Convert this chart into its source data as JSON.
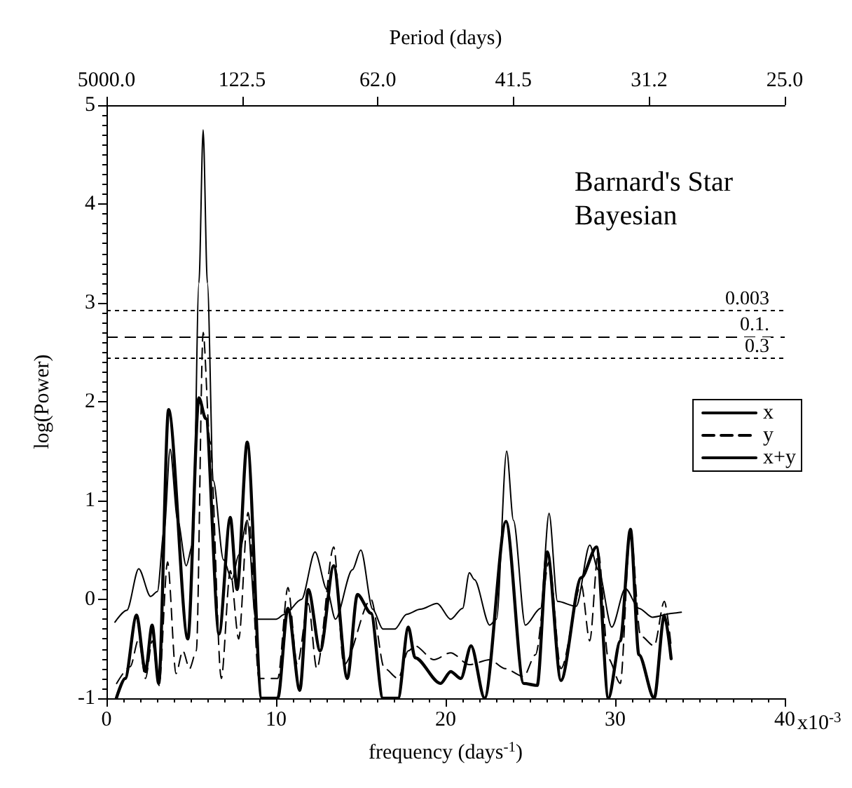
{
  "chart_data": {
    "type": "line",
    "xlabel": "frequency (days$^{-1}$)",
    "ylabel": "log(Power)",
    "x2label": "Period (days)",
    "xlim": [
      0,
      40
    ],
    "xticks": [
      0,
      10,
      20,
      30,
      40
    ],
    "ylim": [
      -1,
      5
    ],
    "yticks": [
      -1,
      0,
      1,
      2,
      3,
      4,
      5
    ],
    "grid": false,
    "legend": "right",
    "marker": "none",
    "annotations": [
      "Barnard's Star",
      "Bayesian",
      "x10$^{-3}$",
      "5000.0",
      "122.5",
      "62.0",
      "41.5",
      "31.2",
      "25.0",
      {
        "text": "0.003",
        "y": 2.92
      },
      {
        "text": "0.1.",
        "y": 2.66
      },
      {
        "text": "0.3",
        "y": 2.44
      }
    ],
    "ref_lines": [
      {
        "axis": "y",
        "value": 2.92,
        "line_style": "dotted",
        "color": "#000000"
      },
      {
        "axis": "y",
        "value": 2.66,
        "line_style": "dashed",
        "color": "#000000"
      },
      {
        "axis": "y",
        "value": 2.44,
        "line_style": "dotted",
        "color": "#000000"
      }
    ],
    "series": [
      {
        "name": "x",
        "color": "#000000",
        "line_style": "solid",
        "x": [
          0.5,
          1.2,
          1.9,
          2.6,
          3.0,
          3.4,
          3.75,
          4.2,
          4.7,
          5.1,
          5.45,
          5.7,
          5.95,
          6.3,
          6.9,
          7.4,
          7.8,
          8.3,
          8.8,
          9.3,
          10.0,
          10.5,
          11.5,
          12.3,
          13.0,
          13.5,
          14.5,
          15.0,
          15.7,
          16.3,
          17.0,
          17.7,
          18.5,
          19.5,
          20.3,
          21.0,
          21.4,
          21.7,
          22.6,
          23.0,
          23.6,
          24.0,
          24.7,
          25.6,
          26.1,
          26.6,
          27.7,
          28.5,
          29.0,
          29.8,
          30.6,
          31.4,
          32.2,
          33.4,
          33.9
        ],
        "values": [
          -0.23,
          -0.11,
          0.31,
          0.03,
          0.08,
          0.7,
          1.52,
          0.8,
          0.34,
          0.57,
          3.2,
          4.75,
          3.2,
          1.2,
          0.4,
          0.2,
          0.45,
          0.8,
          -0.2,
          -0.2,
          -0.2,
          -0.15,
          0.0,
          0.48,
          0.1,
          -0.2,
          0.3,
          0.5,
          -0.1,
          -0.3,
          -0.3,
          -0.15,
          -0.1,
          -0.04,
          -0.2,
          -0.09,
          0.27,
          0.2,
          -0.26,
          -0.2,
          1.5,
          0.8,
          -0.26,
          -0.09,
          0.87,
          -0.02,
          -0.07,
          0.55,
          0.3,
          -0.28,
          0.11,
          -0.09,
          -0.18,
          -0.14,
          -0.13
        ]
      },
      {
        "name": "y",
        "color": "#000000",
        "line_style": "dashed",
        "x": [
          0.6,
          1.4,
          1.9,
          2.3,
          2.7,
          3.1,
          3.6,
          4.1,
          4.5,
          4.9,
          5.3,
          5.7,
          6.1,
          6.77,
          7.3,
          7.8,
          8.35,
          9.0,
          10.1,
          10.7,
          11.25,
          11.9,
          12.4,
          13.4,
          14.0,
          15.6,
          16.4,
          17.2,
          17.8,
          18.2,
          19.3,
          20.3,
          21.4,
          22.6,
          23.5,
          24.6,
          25.3,
          26.1,
          26.8,
          28.0,
          28.5,
          29.0,
          29.6,
          30.3,
          30.9,
          31.5,
          32.3,
          32.9,
          33.3
        ],
        "values": [
          -0.85,
          -0.68,
          -0.4,
          -0.8,
          -0.42,
          -0.87,
          0.38,
          -0.75,
          -0.52,
          -0.7,
          -0.52,
          2.7,
          1.6,
          -0.8,
          0.29,
          -0.4,
          0.88,
          -0.8,
          -0.8,
          0.12,
          -0.66,
          -0.04,
          -0.7,
          0.53,
          -0.66,
          0.0,
          -0.7,
          -0.8,
          -0.52,
          -0.47,
          -0.61,
          -0.54,
          -0.66,
          -0.61,
          -0.7,
          -0.78,
          -0.56,
          0.38,
          -0.7,
          0.15,
          -0.42,
          0.48,
          -0.6,
          -0.85,
          0.71,
          -0.37,
          -0.47,
          -0.02,
          -0.47
        ]
      },
      {
        "name": "x+y",
        "color": "#000000",
        "line_style": "solid",
        "x": [
          0.58,
          1.1,
          1.77,
          2.3,
          2.69,
          3.08,
          3.66,
          4.8,
          5.45,
          5.85,
          6.64,
          7.3,
          7.7,
          8.3,
          9.15,
          10.1,
          10.7,
          11.4,
          11.9,
          12.6,
          13.4,
          14.2,
          14.8,
          15.6,
          16.3,
          17.2,
          17.8,
          18.2,
          19.7,
          20.3,
          20.9,
          21.5,
          22.3,
          23.56,
          24.6,
          25.4,
          26.0,
          26.8,
          28.0,
          28.9,
          29.6,
          30.3,
          30.9,
          31.4,
          32.3,
          32.9,
          33.3
        ],
        "values": [
          -1.0,
          -0.8,
          -0.16,
          -0.73,
          -0.26,
          -0.85,
          1.92,
          -0.4,
          2.04,
          1.83,
          -0.35,
          0.83,
          0.1,
          1.59,
          -1.0,
          -1.0,
          -0.09,
          -0.92,
          0.1,
          -0.52,
          0.34,
          -0.8,
          0.05,
          -0.14,
          -1.0,
          -1.0,
          -0.28,
          -0.59,
          -0.85,
          -0.73,
          -0.8,
          -0.47,
          -1.0,
          0.79,
          -0.85,
          -0.87,
          0.48,
          -0.82,
          0.22,
          0.53,
          -1.0,
          -0.42,
          0.71,
          -0.56,
          -1.0,
          -0.16,
          -0.6
        ]
      }
    ]
  }
}
